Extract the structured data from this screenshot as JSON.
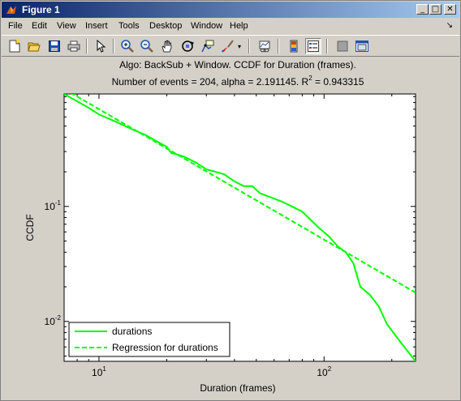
{
  "window": {
    "title": "Figure 1",
    "minimize_label": "_",
    "maximize_label": "□",
    "close_label": "✕"
  },
  "menu": [
    "File",
    "Edit",
    "View",
    "Insert",
    "Tools",
    "Desktop",
    "Window",
    "Help"
  ],
  "menu_chevron": "↘",
  "toolbar_icons": [
    "new-figure-icon",
    "open-file-icon",
    "save-icon",
    "print-icon",
    "edit-plot-arrow-icon",
    "zoom-in-icon",
    "zoom-out-icon",
    "pan-hand-icon",
    "rotate-3d-icon",
    "data-cursor-icon",
    "brush-icon",
    "brush-dropdown-icon",
    "link-plot-icon",
    "insert-colorbar-icon",
    "insert-legend-icon",
    "hide-plot-tools-icon",
    "show-plot-tools-icon"
  ],
  "chart_data": {
    "type": "line",
    "title_line1": "Algo: BackSub + Window. CCDF for Duration (frames).",
    "title_line2_prefix": "Number of events = 204, alpha = 2.191145. R",
    "title_line2_sup": "2",
    "title_line2_suffix": " = 0.943315",
    "xlabel": "Duration (frames)",
    "ylabel": "CCDF",
    "xscale": "log",
    "yscale": "log",
    "xlim": [
      7,
      255
    ],
    "ylim": [
      0.0045,
      0.95
    ],
    "x_ticks": [
      {
        "value": 10,
        "base": "10",
        "exp": "1"
      },
      {
        "value": 100,
        "base": "10",
        "exp": "2"
      }
    ],
    "y_ticks": [
      {
        "value": 0.01,
        "base": "10",
        "exp": "-2"
      },
      {
        "value": 0.1,
        "base": "10",
        "exp": "-1"
      }
    ],
    "series": [
      {
        "name": "durations",
        "style": "solid",
        "color": "#00ff00",
        "x": [
          7,
          8,
          9,
          10,
          12,
          14,
          16,
          18,
          20,
          21,
          22,
          24,
          27,
          30,
          33,
          36,
          40,
          44,
          48,
          52,
          58,
          65,
          72,
          80,
          88,
          95,
          105,
          115,
          125,
          135,
          145,
          160,
          175,
          190,
          220,
          255
        ],
        "y": [
          0.95,
          0.82,
          0.72,
          0.63,
          0.54,
          0.47,
          0.42,
          0.37,
          0.33,
          0.29,
          0.285,
          0.27,
          0.24,
          0.21,
          0.2,
          0.19,
          0.165,
          0.15,
          0.15,
          0.13,
          0.12,
          0.11,
          0.1,
          0.09,
          0.075,
          0.065,
          0.055,
          0.045,
          0.04,
          0.032,
          0.02,
          0.017,
          0.0135,
          0.0095,
          0.0065,
          0.0045
        ]
      },
      {
        "name": "Regression for durations",
        "style": "dashed",
        "color": "#00ff00",
        "x": [
          7,
          255
        ],
        "y": [
          1.05,
          0.0178
        ]
      }
    ],
    "legend_position": "bottom-left",
    "grid": false
  }
}
